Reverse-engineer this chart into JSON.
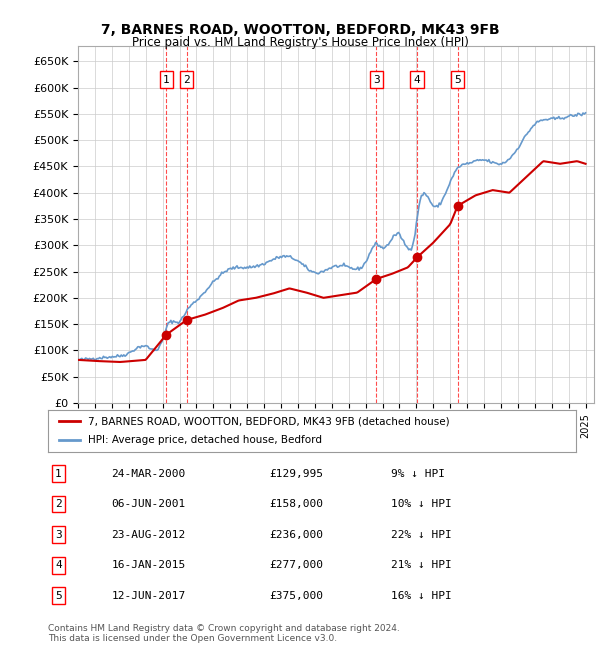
{
  "title": "7, BARNES ROAD, WOOTTON, BEDFORD, MK43 9FB",
  "subtitle": "Price paid vs. HM Land Registry's House Price Index (HPI)",
  "ylabel": "",
  "xlim_start": 1995.0,
  "xlim_end": 2025.5,
  "ylim": [
    0,
    680000
  ],
  "yticks": [
    0,
    50000,
    100000,
    150000,
    200000,
    250000,
    300000,
    350000,
    400000,
    450000,
    500000,
    550000,
    600000,
    650000
  ],
  "ytick_labels": [
    "£0",
    "£50K",
    "£100K",
    "£150K",
    "£200K",
    "£250K",
    "£300K",
    "£350K",
    "£400K",
    "£450K",
    "£500K",
    "£550K",
    "£600K",
    "£650K"
  ],
  "background_color": "#ffffff",
  "grid_color": "#cccccc",
  "hpi_color": "#6699cc",
  "price_color": "#cc0000",
  "sale_marker_color": "#cc0000",
  "transactions": [
    {
      "num": 1,
      "date_str": "24-MAR-2000",
      "year_float": 2000.22,
      "price": 129995,
      "pct": "9%"
    },
    {
      "num": 2,
      "date_str": "06-JUN-2001",
      "year_float": 2001.43,
      "price": 158000,
      "pct": "10%"
    },
    {
      "num": 3,
      "date_str": "23-AUG-2012",
      "year_float": 2012.64,
      "price": 236000,
      "pct": "22%"
    },
    {
      "num": 4,
      "date_str": "16-JAN-2015",
      "year_float": 2015.04,
      "price": 277000,
      "pct": "21%"
    },
    {
      "num": 5,
      "date_str": "12-JUN-2017",
      "year_float": 2017.44,
      "price": 375000,
      "pct": "16%"
    }
  ],
  "legend_line1": "7, BARNES ROAD, WOOTTON, BEDFORD, MK43 9FB (detached house)",
  "legend_line2": "HPI: Average price, detached house, Bedford",
  "footer1": "Contains HM Land Registry data © Crown copyright and database right 2024.",
  "footer2": "This data is licensed under the Open Government Licence v3.0.",
  "table_rows": [
    {
      "num": 1,
      "date": "24-MAR-2000",
      "price": "£129,995",
      "pct": "9% ↓ HPI"
    },
    {
      "num": 2,
      "date": "06-JUN-2001",
      "price": "£158,000",
      "pct": "10% ↓ HPI"
    },
    {
      "num": 3,
      "date": "23-AUG-2012",
      "price": "£236,000",
      "pct": "22% ↓ HPI"
    },
    {
      "num": 4,
      "date": "16-JAN-2015",
      "price": "£277,000",
      "pct": "21% ↓ HPI"
    },
    {
      "num": 5,
      "date": "12-JUN-2017",
      "price": "£375,000",
      "pct": "16% ↓ HPI"
    }
  ]
}
